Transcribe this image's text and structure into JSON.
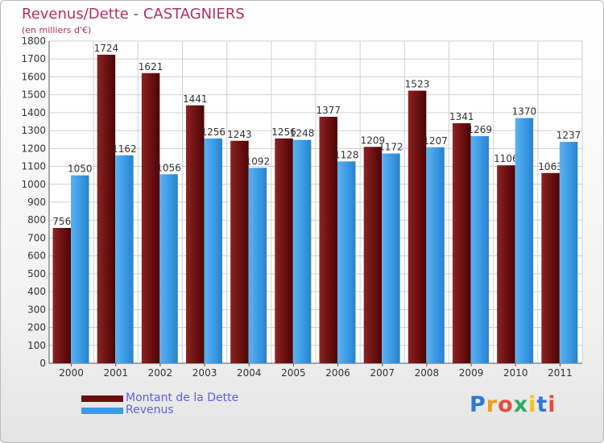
{
  "header": {
    "title": "Revenus/Dette - CASTAGNIERS",
    "subtitle": "(en milliers d'€)"
  },
  "legend": {
    "items": [
      {
        "label": "Montant de la Dette",
        "color": "#6b0f0f"
      },
      {
        "label": "Revenus",
        "color": "#3a9ae6"
      }
    ]
  },
  "logo": {
    "text": "Proxiti",
    "letter_colors": [
      "#2d7ad6",
      "#f39c12",
      "#e74c3c",
      "#27ae60",
      "#f1c40f",
      "#2d7ad6",
      "#e74c3c"
    ]
  },
  "chart_data": {
    "type": "bar",
    "categories": [
      "2000",
      "2001",
      "2002",
      "2003",
      "2004",
      "2005",
      "2006",
      "2007",
      "2008",
      "2009",
      "2010",
      "2011"
    ],
    "series": [
      {
        "name": "Montant de la Dette",
        "color": "#6b0f0f",
        "values": [
          756,
          1724,
          1621,
          1441,
          1243,
          1256,
          1377,
          1209,
          1523,
          1341,
          1106,
          1063
        ]
      },
      {
        "name": "Revenus",
        "color": "#3a9ae6",
        "values": [
          1050,
          1162,
          1056,
          1256,
          1092,
          1248,
          1128,
          1172,
          1207,
          1269,
          1370,
          1237
        ]
      }
    ],
    "ylim": [
      0,
      1800
    ],
    "yticks": [
      0,
      100,
      200,
      300,
      400,
      500,
      600,
      700,
      800,
      900,
      1000,
      1100,
      1200,
      1300,
      1400,
      1500,
      1600,
      1700,
      1800
    ],
    "grid": true,
    "legend_position": "bottom-left"
  }
}
